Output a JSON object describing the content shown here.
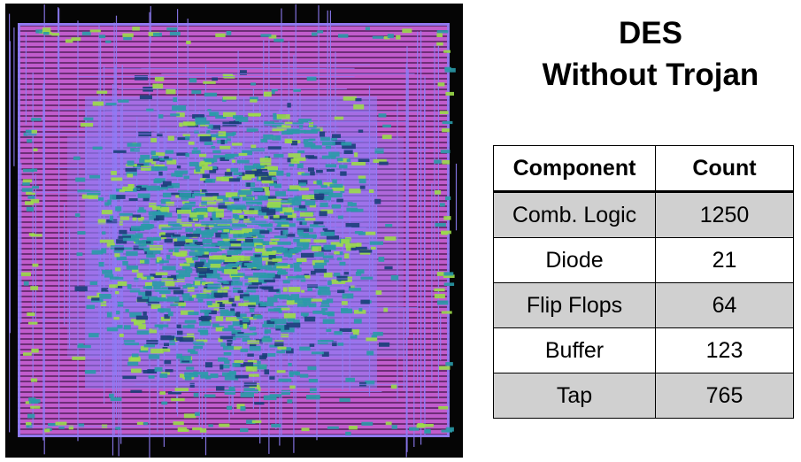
{
  "title": {
    "line1": "DES",
    "line2": "Without Trojan"
  },
  "table": {
    "headers": {
      "component": "Component",
      "count": "Count"
    },
    "rows": [
      {
        "component": "Comb. Logic",
        "count": "1250"
      },
      {
        "component": "Diode",
        "count": "21"
      },
      {
        "component": "Flip Flops",
        "count": "64"
      },
      {
        "component": "Buffer",
        "count": "123"
      },
      {
        "component": "Tap",
        "count": "765"
      }
    ]
  },
  "colors": {
    "background": "#050505",
    "metal_magenta": "#e36cf0",
    "metal_violet": "#8e7cf5",
    "cell_teal": "#2a9aa8",
    "cell_green": "#9bdc4a",
    "row_shade": "#d0d0d0"
  }
}
